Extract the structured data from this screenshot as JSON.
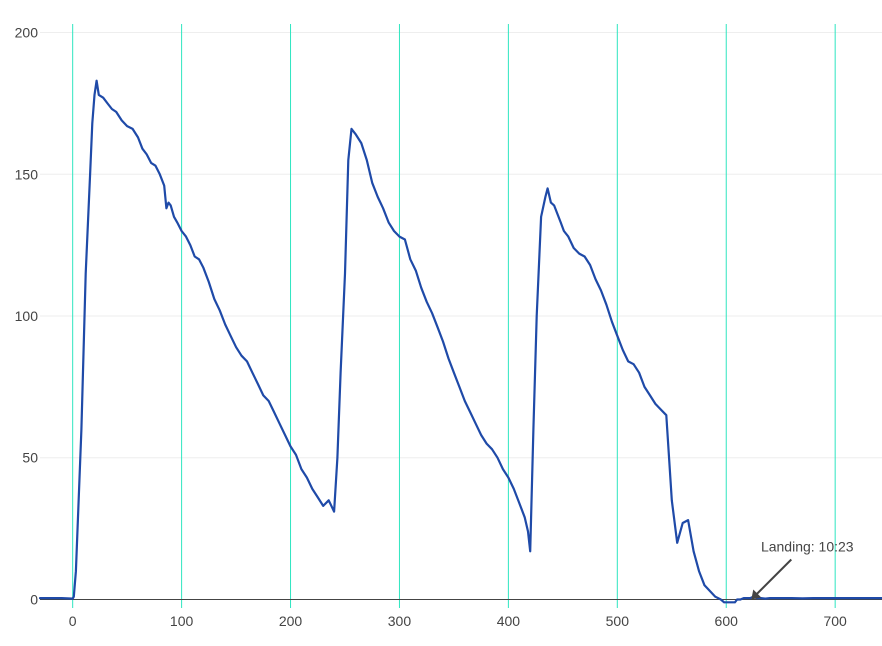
{
  "chart_data": {
    "type": "line",
    "title": "",
    "xlabel": "",
    "ylabel": "",
    "xlim": [
      -30,
      743
    ],
    "ylim": [
      -3,
      203
    ],
    "x_ticks": [
      0,
      100,
      200,
      300,
      400,
      500,
      600,
      700
    ],
    "y_ticks": [
      0,
      50,
      100,
      150,
      200
    ],
    "x_tick_labels": [
      "0",
      "100",
      "200",
      "300",
      "400",
      "500",
      "600",
      "700"
    ],
    "y_tick_labels": [
      "0",
      "50",
      "100",
      "150",
      "200"
    ],
    "grid": true,
    "colors": {
      "series": "#1f4aa8",
      "vertical_gridline": "#2ee6c0",
      "horizontal_gridline": "#eeeeee",
      "zero_line": "#444444",
      "annotation": "#444444"
    },
    "series": [
      {
        "x": [
          -30,
          -10,
          0,
          1,
          3,
          8,
          12,
          16,
          18,
          20,
          22,
          24,
          28,
          32,
          36,
          40,
          45,
          50,
          55,
          60,
          64,
          68,
          72,
          76,
          80,
          84,
          86,
          88,
          90,
          93,
          96,
          100,
          104,
          108,
          112,
          116,
          120,
          125,
          130,
          135,
          140,
          145,
          150,
          155,
          160,
          165,
          170,
          175,
          180,
          185,
          190,
          195,
          200,
          205,
          210,
          215,
          220,
          225,
          230,
          235,
          240,
          243,
          246,
          250,
          253,
          256,
          260,
          265,
          270,
          275,
          280,
          285,
          290,
          295,
          300,
          305,
          310,
          315,
          320,
          325,
          330,
          335,
          340,
          345,
          350,
          355,
          360,
          365,
          370,
          375,
          380,
          385,
          390,
          395,
          400,
          405,
          410,
          415,
          418,
          420,
          423,
          426,
          430,
          434,
          436,
          439,
          442,
          445,
          448,
          451,
          455,
          460,
          465,
          470,
          475,
          480,
          485,
          490,
          495,
          500,
          505,
          510,
          515,
          520,
          525,
          530,
          535,
          540,
          545,
          550,
          555,
          560,
          565,
          570,
          575,
          580,
          585,
          590,
          595,
          598,
          600,
          603,
          605,
          608,
          610,
          613,
          616,
          619,
          622,
          625,
          628,
          632,
          636,
          640,
          650,
          660,
          670,
          680,
          690,
          700,
          710,
          720,
          730,
          743
        ],
        "y": [
          0.5,
          0.5,
          0.3,
          1,
          10,
          60,
          115,
          150,
          168,
          178,
          183,
          178,
          177,
          175,
          173,
          172,
          169,
          167,
          166,
          163,
          159,
          157,
          154,
          153,
          150,
          146,
          138,
          140,
          139,
          135,
          133,
          130,
          128,
          125,
          121,
          120,
          117,
          112,
          106,
          102,
          97,
          93,
          89,
          86,
          84,
          80,
          76,
          72,
          70,
          66,
          62,
          58,
          54,
          51,
          46,
          43,
          39,
          36,
          33,
          35,
          31,
          50,
          80,
          115,
          155,
          166,
          164,
          161,
          155,
          147,
          142,
          138,
          133,
          130,
          128,
          127,
          120,
          116,
          110,
          105,
          101,
          96,
          91,
          85,
          80,
          75,
          70,
          66,
          62,
          58,
          55,
          53,
          50,
          46,
          43,
          39,
          34,
          29,
          24,
          17,
          60,
          100,
          135,
          142,
          145,
          140,
          139,
          136,
          133,
          130,
          128,
          124,
          122,
          121,
          118,
          113,
          109,
          104,
          98,
          93,
          88,
          84,
          83,
          80,
          75,
          72,
          69,
          67,
          65,
          35,
          20,
          27,
          28,
          17,
          10,
          5,
          3,
          1,
          0,
          -1,
          -1,
          -1,
          -1,
          -1,
          0,
          0,
          0.5,
          0.5,
          0.5,
          1,
          0.5,
          0.5,
          0.3,
          0.5,
          0.5,
          0.5,
          0.4,
          0.5,
          0.5,
          0.5,
          0.5,
          0.5,
          0.5,
          0.5
        ]
      }
    ],
    "annotations": [
      {
        "text": "Landing: 10:23",
        "x": 623,
        "y": 0
      }
    ]
  }
}
